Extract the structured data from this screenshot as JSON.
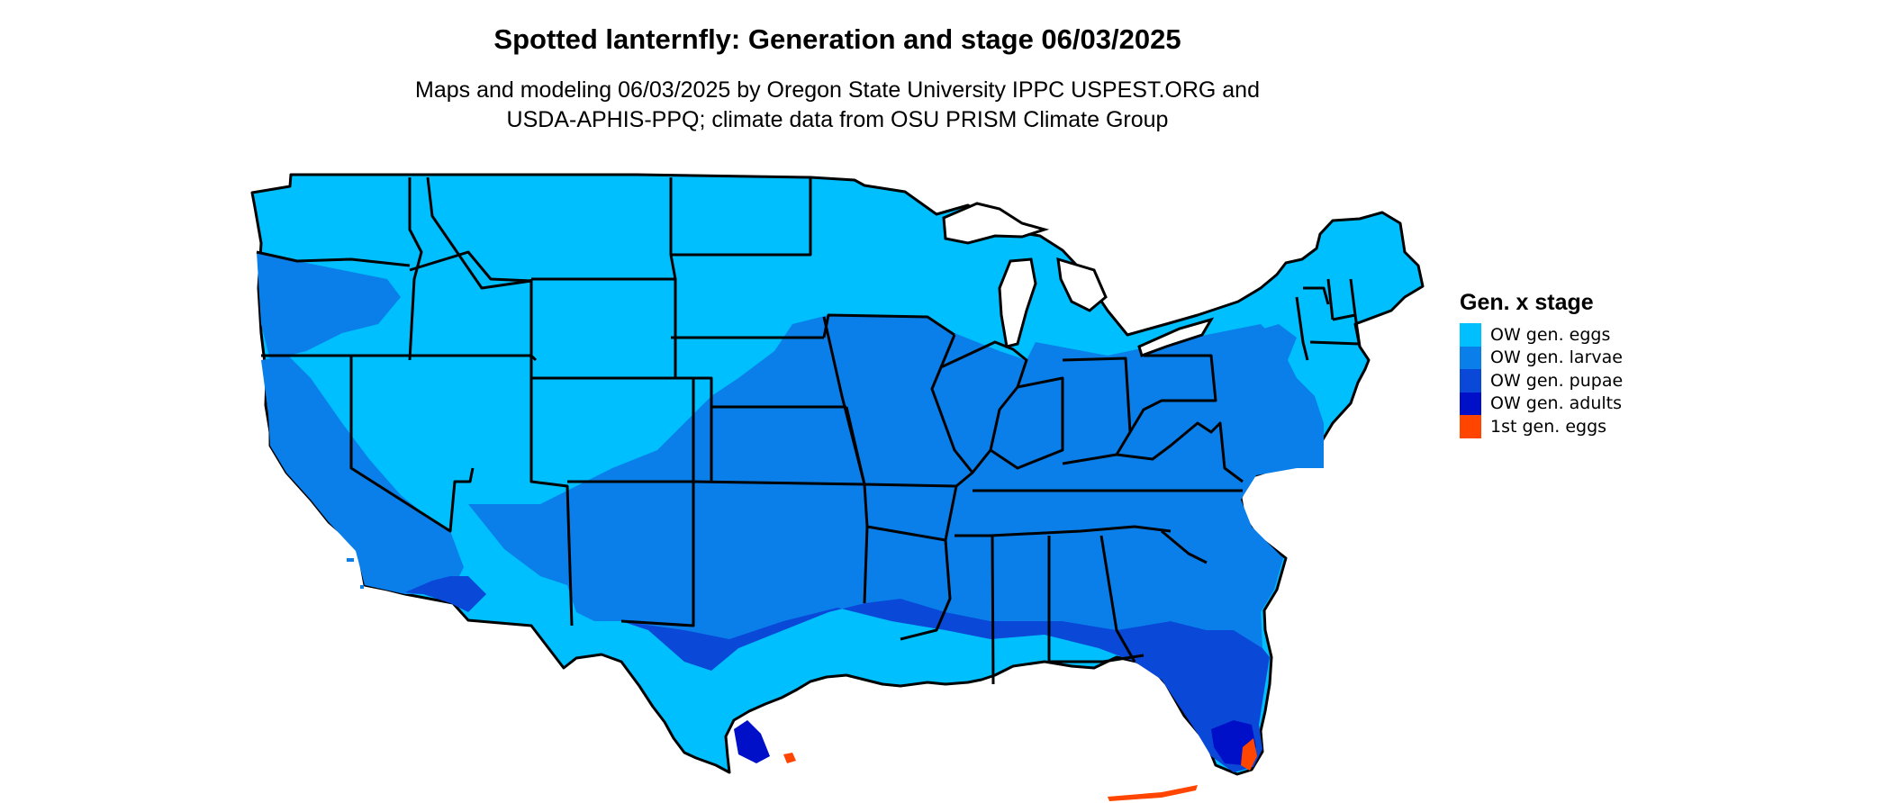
{
  "title": "Spotted lanternfly: Generation and stage 06/03/2025",
  "subtitle_lines": [
    "Maps and modeling 06/03/2025 by Oregon State University IPPC USPEST.ORG and",
    "USDA-APHIS-PPQ; climate data from OSU PRISM Climate Group"
  ],
  "legend": {
    "title": "Gen. x stage",
    "items": [
      {
        "label": "OW gen. eggs",
        "color": "#00BFFF"
      },
      {
        "label": "OW gen. larvae",
        "color": "#0A7FEA"
      },
      {
        "label": "OW gen. pupae",
        "color": "#0A48D8"
      },
      {
        "label": "OW gen. adults",
        "color": "#0010C8"
      },
      {
        "label": "1st gen. eggs",
        "color": "#FF4500"
      }
    ]
  },
  "colors": {
    "border": "#000000",
    "background": "#ffffff"
  }
}
